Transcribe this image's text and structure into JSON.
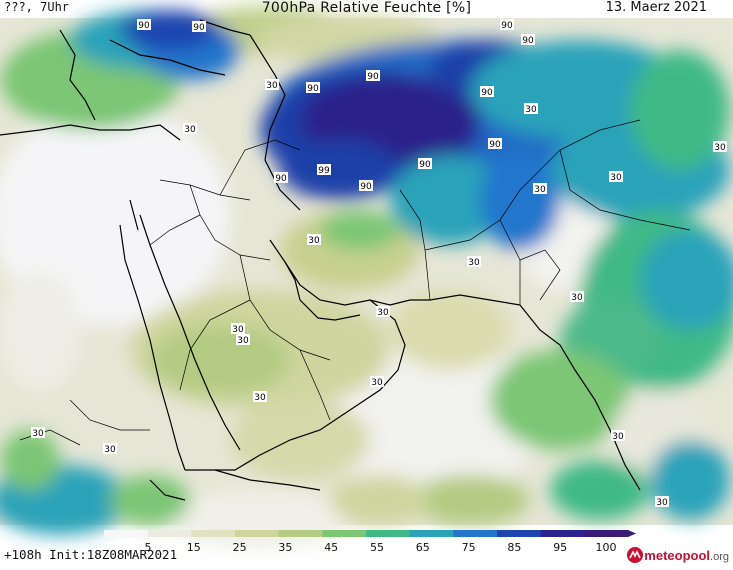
{
  "header": {
    "left": "???, 7Uhr",
    "title": "700hPa Relative Feuchte [%]",
    "right": "13. Maerz 2021"
  },
  "footer": {
    "run_info": "+108h  Init:18Z08MAR2021",
    "logo_brand": "meteopool",
    "logo_suffix": ".org"
  },
  "colorbar": {
    "ticks": [
      "5",
      "15",
      "25",
      "35",
      "45",
      "55",
      "65",
      "75",
      "85",
      "95",
      "100"
    ],
    "colors": [
      "#f7f7f7",
      "#ecebe0",
      "#e1e2c2",
      "#cfd59f",
      "#b3cb82",
      "#7cc675",
      "#3fb986",
      "#2aa3b9",
      "#2476cc",
      "#1f44b0",
      "#2b2390",
      "#3b1c78"
    ]
  },
  "contour_labels": [
    "90",
    "90",
    "90",
    "90",
    "90",
    "90",
    "90",
    "90",
    "90",
    "99",
    "90",
    "30",
    "30",
    "30",
    "30",
    "30",
    "30",
    "30",
    "30",
    "30",
    "30",
    "30",
    "30",
    "30",
    "30",
    "30"
  ],
  "palette": {
    "very_dry": "#f5f5f7",
    "dry": "#e6e6d6",
    "low": "#d8dcb6",
    "mid_low": "#c3d08f",
    "mid": "#98c57a",
    "moist": "#4db98a",
    "wet": "#2e9fc0",
    "very_wet": "#2469c6",
    "saturated": "#1f3fa8",
    "max": "#2a208a",
    "coast": "#000000"
  }
}
